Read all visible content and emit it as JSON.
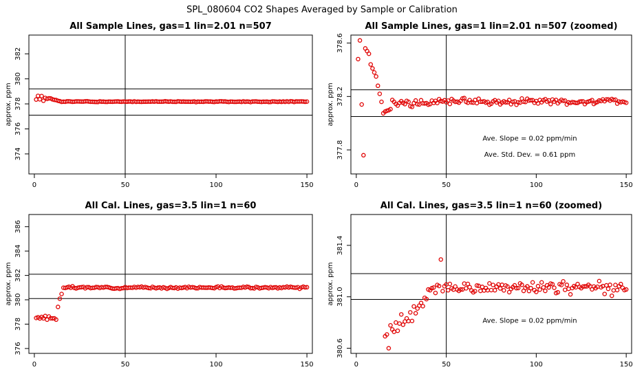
{
  "page_title": "SPL_080604  CO2 Shapes Averaged by Sample or Calibration",
  "colors": {
    "points": "#e00000",
    "axes": "#000000",
    "background": "#ffffff"
  },
  "chart_data": [
    {
      "type": "scatter",
      "title": "All Sample Lines, gas=1 lin=2.01 n=507",
      "xlabel": "",
      "ylabel": "approx. ppm",
      "xlim": [
        -3,
        153
      ],
      "ylim": [
        372.4,
        383.5
      ],
      "xticks": [
        0,
        50,
        100,
        150
      ],
      "yticks": [
        374,
        376,
        378,
        380,
        382
      ],
      "hlines": [
        379.2,
        377.1
      ],
      "vline": 50,
      "series": [
        {
          "gen": "sample",
          "seed": 1
        }
      ],
      "annotations": []
    },
    {
      "type": "scatter",
      "title": "All Sample Lines, gas=1 lin=2.01 n=507 (zoomed)",
      "xlabel": "",
      "ylabel": "approx. ppm",
      "xlim": [
        -3,
        153
      ],
      "ylim": [
        377.62,
        378.66
      ],
      "xticks": [
        0,
        50,
        100,
        150
      ],
      "yticks": [
        377.8,
        378.2,
        378.6
      ],
      "hlines": [
        378.25,
        378.05
      ],
      "vline": 50,
      "series": [
        {
          "gen": "sample_zoom",
          "seed": 2
        }
      ],
      "annotations": [
        {
          "text": "Ave. Slope =  0.02  ppm/min",
          "x": 75,
          "y": 377.89
        },
        {
          "text": "Ave. Std. Dev. =  0.61  ppm",
          "x": 75,
          "y": 377.77
        }
      ]
    },
    {
      "type": "scatter",
      "title": "All Cal. Lines, gas=3.5 lin=1 n=60",
      "xlabel": "",
      "ylabel": "approx. ppm",
      "xlim": [
        -3,
        153
      ],
      "ylim": [
        375.6,
        387.0
      ],
      "xticks": [
        0,
        50,
        100,
        150
      ],
      "yticks": [
        376,
        378,
        380,
        382,
        384,
        386
      ],
      "hlines": [
        382.1,
        380.1
      ],
      "vline": 50,
      "series": [
        {
          "gen": "cal",
          "seed": 3
        }
      ],
      "annotations": []
    },
    {
      "type": "scatter",
      "title": "All Cal. Lines, gas=3.5 lin=1 n=60 (zoomed)",
      "xlabel": "",
      "ylabel": "approx. ppm",
      "xlim": [
        -3,
        153
      ],
      "ylim": [
        380.56,
        381.64
      ],
      "xticks": [
        0,
        50,
        100,
        150
      ],
      "yticks": [
        380.6,
        381.0,
        381.4
      ],
      "hlines": [
        381.18,
        380.98
      ],
      "vline": 50,
      "series": [
        {
          "gen": "cal_zoom",
          "seed": 4
        }
      ],
      "annotations": [
        {
          "text": "Ave. Slope =  0.02  ppm/min",
          "x": 75,
          "y": 380.82
        }
      ]
    }
  ]
}
